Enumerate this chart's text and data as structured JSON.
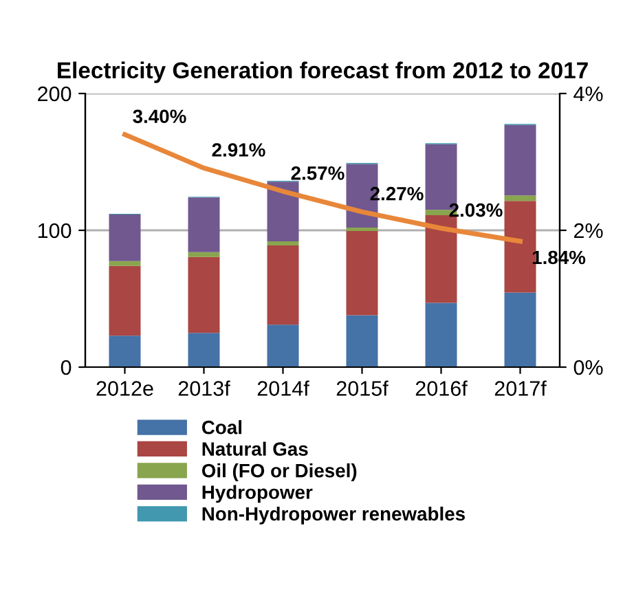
{
  "chart_data": {
    "type": "bar",
    "title": "Electricity Generation forecast from 2012 to 2017",
    "stacked": true,
    "categories": [
      "2012e",
      "2013f",
      "2014f",
      "2015f",
      "2016f",
      "2017f"
    ],
    "series": [
      {
        "name": "Coal",
        "color": "#4572a7",
        "values": [
          23,
          25,
          31,
          38,
          47,
          54.5
        ]
      },
      {
        "name": "Natural Gas",
        "color": "#aa4643",
        "values": [
          51,
          55.5,
          58,
          61.5,
          64,
          67
        ]
      },
      {
        "name": "Oil (FO or Diesel)",
        "color": "#89a54e",
        "values": [
          3.5,
          3.5,
          3,
          2.5,
          4,
          4
        ]
      },
      {
        "name": "Hydropower",
        "color": "#71588f",
        "values": [
          34,
          40,
          43.5,
          46.5,
          48,
          51.5
        ]
      },
      {
        "name": "Non-Hydropower renewables",
        "color": "#4198af",
        "values": [
          0.5,
          0.5,
          0.7,
          0.7,
          0.7,
          0.8
        ]
      },
      {
        "type": "line",
        "axis": "y2",
        "color": "#e8873a",
        "values": [
          3.4,
          2.91,
          2.57,
          2.27,
          2.03,
          1.84
        ],
        "value_labels": [
          "3.40%",
          "2.91%",
          "2.57%",
          "2.27%",
          "2.03%",
          "1.84%"
        ]
      }
    ],
    "ylim": [
      0,
      200
    ],
    "yticks": [
      0,
      100,
      200
    ],
    "y2lim": [
      0,
      4
    ],
    "y2ticks": [
      {
        "value": 0,
        "label": "0%"
      },
      {
        "value": 2,
        "label": "2%"
      },
      {
        "value": 4,
        "label": "4%"
      }
    ],
    "grid": "y",
    "legend": "bottom"
  }
}
